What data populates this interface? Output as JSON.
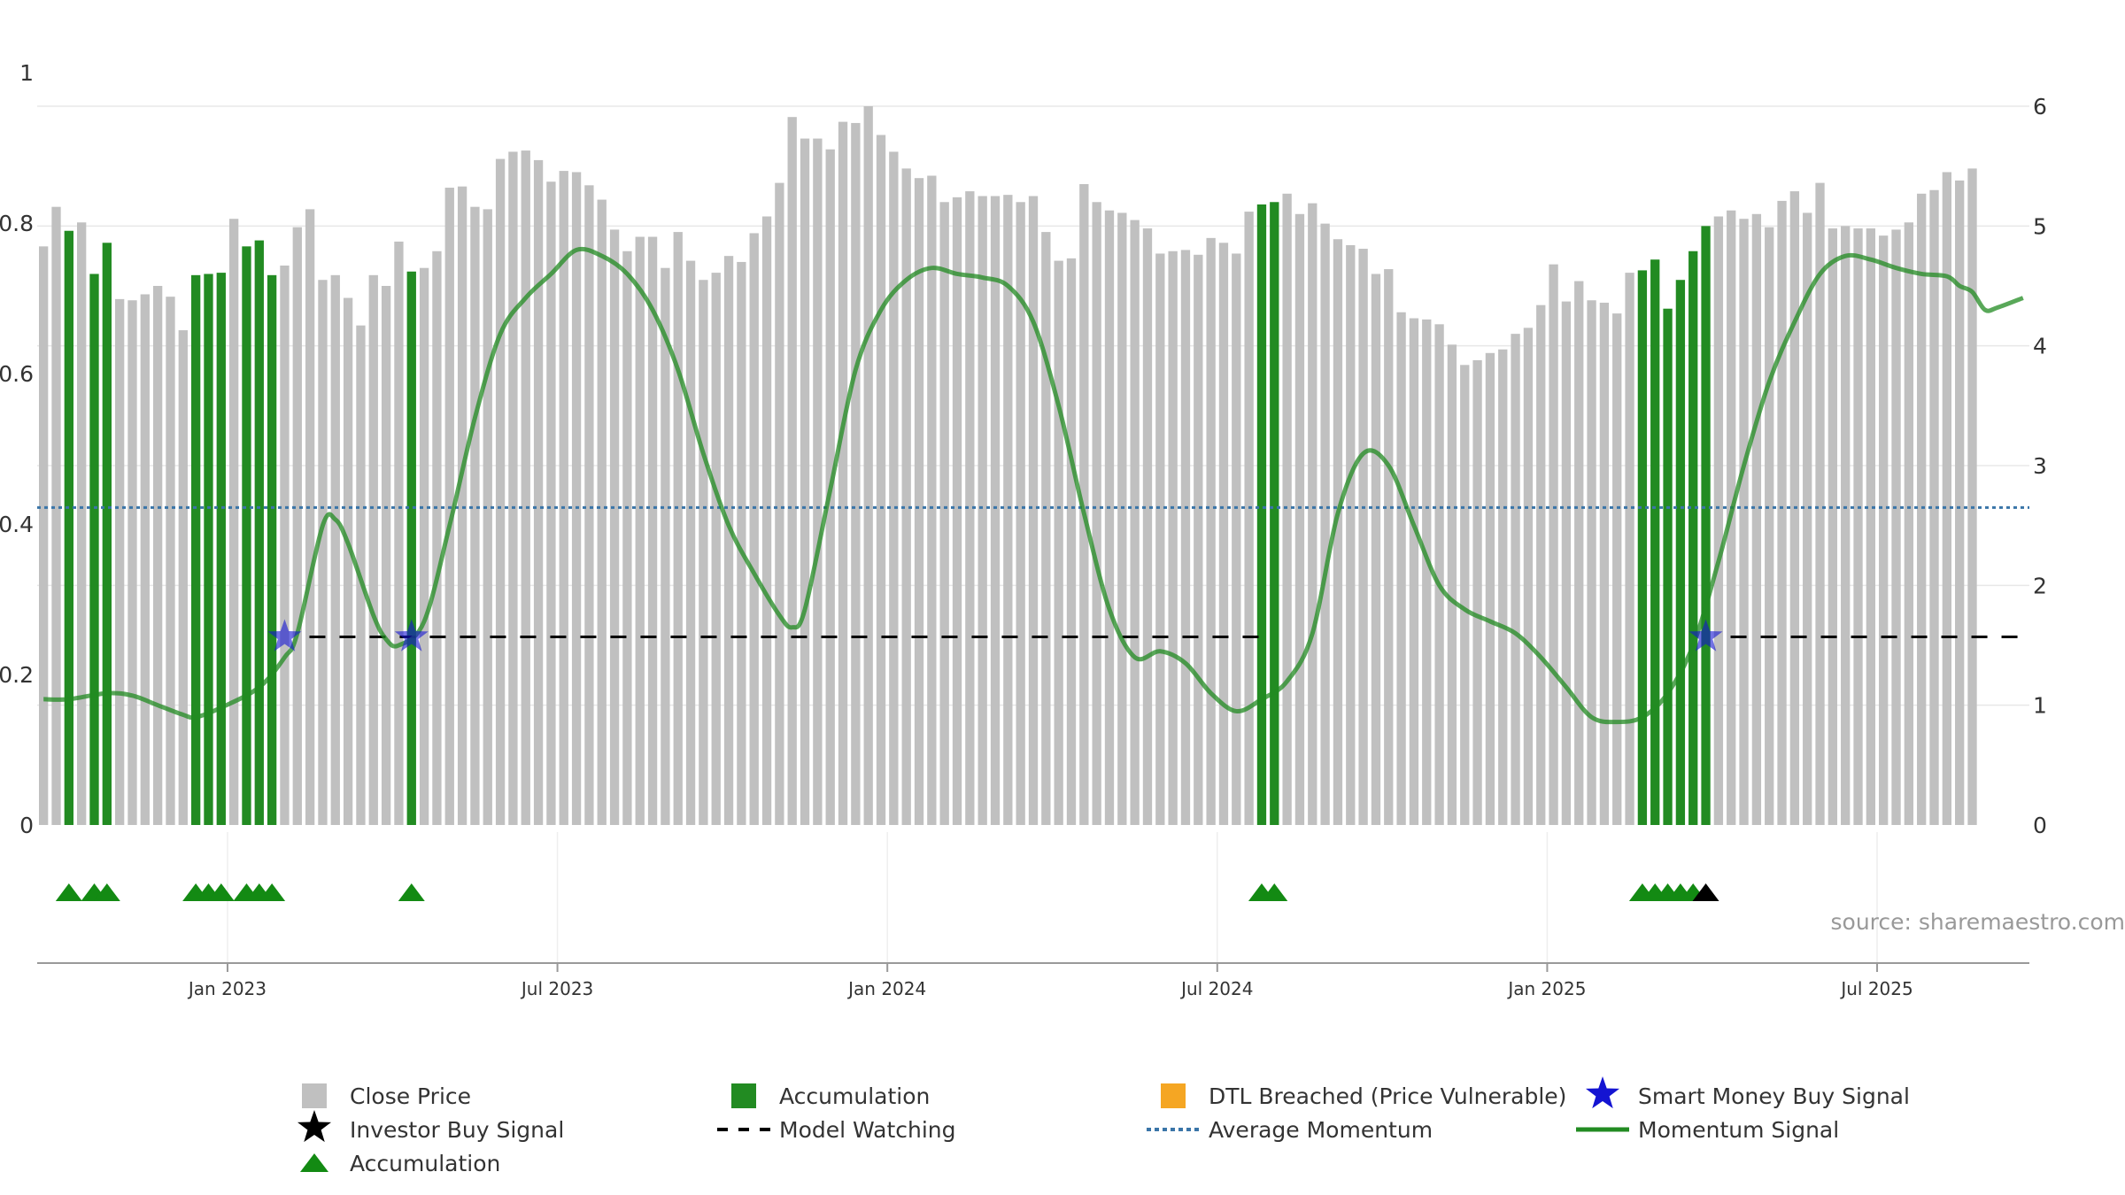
{
  "chart_data": {
    "type": "bar",
    "title": "",
    "xlabel": "",
    "ylabel": "",
    "left_axis": {
      "ylim": [
        0,
        1
      ],
      "ticks": [
        "0",
        "0.2",
        "0.4",
        "0.6",
        "0.8",
        "1"
      ]
    },
    "right_axis": {
      "ylim": [
        0,
        6
      ],
      "ticks": [
        "0",
        "1",
        "2",
        "3",
        "4",
        "5",
        "6"
      ]
    },
    "x_ticks": [
      "Jan 2023",
      "Jul 2023",
      "Jan 2024",
      "Jul 2024",
      "Jan 2025",
      "Jul 2025"
    ],
    "x_tick_weeks": [
      14.5,
      40.5,
      66.5,
      92.5,
      118.5,
      144.5
    ],
    "weeks": 157,
    "close_price": [
      4.83,
      5.16,
      4.96,
      5.03,
      4.6,
      4.86,
      4.39,
      4.38,
      4.43,
      4.5,
      4.41,
      4.13,
      4.59,
      4.6,
      4.61,
      5.06,
      4.83,
      4.88,
      4.59,
      4.67,
      4.99,
      5.14,
      4.55,
      4.59,
      4.4,
      4.17,
      4.59,
      4.5,
      4.87,
      4.62,
      4.65,
      4.79,
      5.32,
      5.33,
      5.16,
      5.14,
      5.56,
      5.62,
      5.63,
      5.55,
      5.37,
      5.46,
      5.45,
      5.34,
      5.22,
      4.97,
      4.79,
      4.91,
      4.91,
      4.65,
      4.95,
      4.71,
      4.55,
      4.61,
      4.75,
      4.7,
      4.94,
      5.08,
      5.36,
      5.91,
      5.73,
      5.73,
      5.64,
      5.87,
      5.86,
      6.0,
      5.76,
      5.62,
      5.48,
      5.4,
      5.42,
      5.2,
      5.24,
      5.29,
      5.25,
      5.25,
      5.26,
      5.2,
      5.25,
      4.95,
      4.71,
      4.73,
      5.35,
      5.2,
      5.13,
      5.11,
      5.05,
      4.98,
      4.77,
      4.79,
      4.8,
      4.76,
      4.9,
      4.86,
      4.77,
      5.12,
      5.18,
      5.2,
      5.27,
      5.1,
      5.19,
      5.02,
      4.89,
      4.84,
      4.81,
      4.6,
      4.64,
      4.28,
      4.23,
      4.22,
      4.18,
      4.01,
      3.84,
      3.88,
      3.94,
      3.97,
      4.1,
      4.15,
      4.34,
      4.68,
      4.37,
      4.54,
      4.38,
      4.36,
      4.27,
      4.61,
      4.63,
      4.72,
      4.31,
      4.55,
      4.79,
      5.0,
      5.08,
      5.13,
      5.06,
      5.1,
      4.99,
      5.21,
      5.29,
      5.11,
      5.36,
      4.98,
      5.0,
      4.98,
      4.98,
      4.92,
      4.97,
      5.03,
      5.27,
      5.3,
      5.45,
      5.38,
      5.48
    ],
    "accumulation_weeks": [
      2,
      4,
      5,
      12,
      13,
      14,
      16,
      17,
      18,
      29,
      96,
      97,
      126,
      127,
      128,
      129,
      130,
      131
    ],
    "accumulation_markers": [
      2,
      4,
      5,
      12,
      13,
      14,
      16,
      17,
      18,
      29,
      96,
      97,
      126,
      127,
      128,
      129,
      130
    ],
    "investor_buy_marker": [
      131
    ],
    "smart_money_buy": [
      {
        "week": 19,
        "value": 1.57
      },
      {
        "week": 29,
        "value": 1.57
      },
      {
        "week": 131,
        "value": 1.57
      }
    ],
    "model_watching_level": 1.57,
    "average_momentum": 2.65,
    "momentum_signal": [
      {
        "week": 0,
        "value": 1.05
      },
      {
        "week": 2,
        "value": 1.05
      },
      {
        "week": 5,
        "value": 1.1
      },
      {
        "week": 7,
        "value": 1.08
      },
      {
        "week": 9,
        "value": 1.0
      },
      {
        "week": 11,
        "value": 0.92
      },
      {
        "week": 12,
        "value": 0.9
      },
      {
        "week": 14,
        "value": 0.98
      },
      {
        "week": 17,
        "value": 1.15
      },
      {
        "week": 19,
        "value": 1.4
      },
      {
        "week": 20,
        "value": 1.6
      },
      {
        "week": 22,
        "value": 2.5
      },
      {
        "week": 23,
        "value": 2.55
      },
      {
        "week": 24,
        "value": 2.35
      },
      {
        "week": 26,
        "value": 1.75
      },
      {
        "week": 27,
        "value": 1.55
      },
      {
        "week": 28,
        "value": 1.5
      },
      {
        "week": 30,
        "value": 1.7
      },
      {
        "week": 32,
        "value": 2.5
      },
      {
        "week": 34,
        "value": 3.4
      },
      {
        "week": 36,
        "value": 4.1
      },
      {
        "week": 38,
        "value": 4.4
      },
      {
        "week": 40,
        "value": 4.6
      },
      {
        "week": 42,
        "value": 4.8
      },
      {
        "week": 44,
        "value": 4.75
      },
      {
        "week": 46,
        "value": 4.6
      },
      {
        "week": 48,
        "value": 4.3
      },
      {
        "week": 50,
        "value": 3.8
      },
      {
        "week": 52,
        "value": 3.1
      },
      {
        "week": 54,
        "value": 2.5
      },
      {
        "week": 56,
        "value": 2.1
      },
      {
        "week": 58,
        "value": 1.75
      },
      {
        "week": 59,
        "value": 1.65
      },
      {
        "week": 60,
        "value": 1.8
      },
      {
        "week": 62,
        "value": 2.8
      },
      {
        "week": 64,
        "value": 3.8
      },
      {
        "week": 66,
        "value": 4.3
      },
      {
        "week": 68,
        "value": 4.55
      },
      {
        "week": 70,
        "value": 4.65
      },
      {
        "week": 72,
        "value": 4.6
      },
      {
        "week": 74,
        "value": 4.57
      },
      {
        "week": 76,
        "value": 4.5
      },
      {
        "week": 78,
        "value": 4.2
      },
      {
        "week": 80,
        "value": 3.5
      },
      {
        "week": 82,
        "value": 2.6
      },
      {
        "week": 84,
        "value": 1.8
      },
      {
        "week": 86,
        "value": 1.4
      },
      {
        "week": 88,
        "value": 1.45
      },
      {
        "week": 90,
        "value": 1.35
      },
      {
        "week": 92,
        "value": 1.1
      },
      {
        "week": 94,
        "value": 0.95
      },
      {
        "week": 96,
        "value": 1.05
      },
      {
        "week": 98,
        "value": 1.2
      },
      {
        "week": 100,
        "value": 1.6
      },
      {
        "week": 102,
        "value": 2.6
      },
      {
        "week": 104,
        "value": 3.1
      },
      {
        "week": 106,
        "value": 3.0
      },
      {
        "week": 108,
        "value": 2.5
      },
      {
        "week": 110,
        "value": 2.0
      },
      {
        "week": 112,
        "value": 1.8
      },
      {
        "week": 114,
        "value": 1.7
      },
      {
        "week": 116,
        "value": 1.6
      },
      {
        "week": 118,
        "value": 1.4
      },
      {
        "week": 120,
        "value": 1.15
      },
      {
        "week": 122,
        "value": 0.9
      },
      {
        "week": 124,
        "value": 0.86
      },
      {
        "week": 126,
        "value": 0.9
      },
      {
        "week": 128,
        "value": 1.1
      },
      {
        "week": 130,
        "value": 1.5
      },
      {
        "week": 132,
        "value": 2.2
      },
      {
        "week": 134,
        "value": 3.0
      },
      {
        "week": 136,
        "value": 3.7
      },
      {
        "week": 138,
        "value": 4.2
      },
      {
        "week": 140,
        "value": 4.6
      },
      {
        "week": 142,
        "value": 4.75
      },
      {
        "week": 144,
        "value": 4.72
      },
      {
        "week": 146,
        "value": 4.65
      },
      {
        "week": 148,
        "value": 4.6
      },
      {
        "week": 150,
        "value": 4.58
      },
      {
        "week": 151,
        "value": 4.5
      },
      {
        "week": 152,
        "value": 4.45
      },
      {
        "week": 153,
        "value": 4.3
      },
      {
        "week": 154,
        "value": 4.32
      },
      {
        "week": 156,
        "value": 4.4
      }
    ],
    "source": "source: sharemaestro.com",
    "legend": [
      {
        "key": "close_price",
        "label": "Close Price"
      },
      {
        "key": "accumulation_bar",
        "label": "Accumulation"
      },
      {
        "key": "dtl_breached",
        "label": "DTL Breached (Price Vulnerable)"
      },
      {
        "key": "smart_money",
        "label": "Smart Money Buy Signal"
      },
      {
        "key": "investor_buy",
        "label": "Investor Buy Signal"
      },
      {
        "key": "model_watching",
        "label": "Model Watching"
      },
      {
        "key": "average_momentum",
        "label": "Average Momentum"
      },
      {
        "key": "momentum_signal",
        "label": "Momentum Signal"
      },
      {
        "key": "accumulation_marker",
        "label": "Accumulation"
      }
    ],
    "colors": {
      "close_price": "#c0c0c0",
      "accumulation": "#228b22",
      "accumulation_marker": "#138a13",
      "dtl_breached": "#f5a623",
      "smart_money": "#1414d2",
      "investor_buy": "#000000",
      "model_watching": "#000000",
      "average_momentum": "#3a75a8",
      "momentum_signal": "#228b22"
    }
  }
}
